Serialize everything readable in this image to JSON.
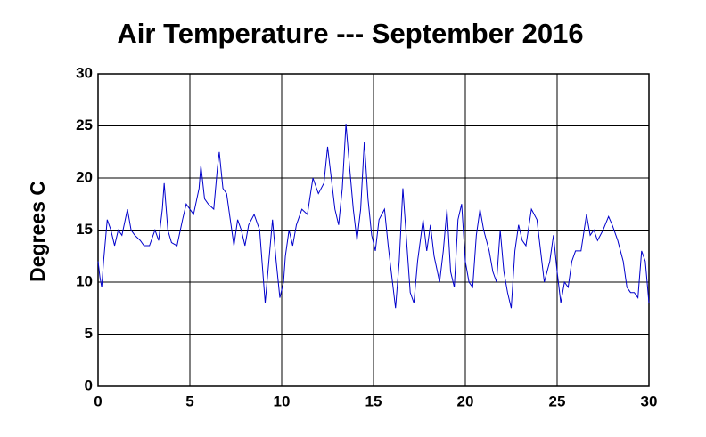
{
  "chart_data": {
    "type": "line",
    "title": "Air Temperature --- September 2016",
    "ylabel": "Degrees C",
    "xlim": [
      0,
      30
    ],
    "xticks": [
      0,
      5,
      10,
      15,
      20,
      25,
      30
    ],
    "ylim": [
      0,
      30
    ],
    "yticks": [
      0,
      5,
      10,
      15,
      20,
      25,
      30
    ],
    "grid": true,
    "x": [
      0,
      0.1,
      0.2,
      0.3,
      0.5,
      0.7,
      0.9,
      1.1,
      1.3,
      1.6,
      1.8,
      2.0,
      2.3,
      2.5,
      2.8,
      3.1,
      3.3,
      3.5,
      3.6,
      3.8,
      4.0,
      4.3,
      4.6,
      4.8,
      5.0,
      5.2,
      5.5,
      5.6,
      5.8,
      6.0,
      6.3,
      6.5,
      6.6,
      6.8,
      7.0,
      7.2,
      7.4,
      7.6,
      7.8,
      8.0,
      8.2,
      8.5,
      8.8,
      9.1,
      9.3,
      9.5,
      9.7,
      9.9,
      10.1,
      10.2,
      10.4,
      10.6,
      10.8,
      11.1,
      11.4,
      11.7,
      12.0,
      12.3,
      12.5,
      12.7,
      12.9,
      13.1,
      13.3,
      13.5,
      13.7,
      13.9,
      14.1,
      14.3,
      14.5,
      14.7,
      14.9,
      15.1,
      15.3,
      15.6,
      15.8,
      16.0,
      16.2,
      16.4,
      16.6,
      16.8,
      17.0,
      17.2,
      17.4,
      17.7,
      17.9,
      18.1,
      18.3,
      18.6,
      18.8,
      19.0,
      19.2,
      19.4,
      19.6,
      19.8,
      20.0,
      20.2,
      20.4,
      20.6,
      20.8,
      21.0,
      21.3,
      21.5,
      21.7,
      21.9,
      22.1,
      22.3,
      22.5,
      22.7,
      22.9,
      23.1,
      23.3,
      23.6,
      23.9,
      24.1,
      24.3,
      24.6,
      24.8,
      25.0,
      25.2,
      25.4,
      25.6,
      25.8,
      26.0,
      26.3,
      26.6,
      26.8,
      27.0,
      27.2,
      27.5,
      27.8,
      28.0,
      28.3,
      28.6,
      28.8,
      29.0,
      29.2,
      29.4,
      29.6,
      29.8,
      30.0
    ],
    "series": [
      {
        "name": "Air Temperature",
        "color": "#0000cc",
        "values": [
          12,
          10.5,
          9.5,
          12,
          16,
          15,
          13.5,
          15,
          14.5,
          17,
          15,
          14.5,
          14,
          13.5,
          13.5,
          15,
          14,
          17,
          19.5,
          15,
          13.8,
          13.5,
          16,
          17.5,
          17,
          16.5,
          19,
          21.2,
          18,
          17.5,
          17,
          21,
          22.5,
          19,
          18.5,
          16,
          13.5,
          16,
          15,
          13.5,
          15.5,
          16.5,
          15,
          8,
          12,
          16,
          12,
          8.5,
          10,
          12.5,
          15,
          13.5,
          15.5,
          17,
          16.5,
          20,
          18.5,
          19.5,
          23,
          20,
          17,
          15.5,
          19,
          25.2,
          21,
          17,
          14,
          17,
          23.5,
          18,
          14.5,
          13,
          16,
          17,
          13.5,
          10.5,
          7.5,
          12,
          19,
          14,
          9,
          8,
          12,
          16,
          13,
          15.5,
          12.5,
          10,
          13,
          17,
          11,
          9.5,
          16,
          17.5,
          12,
          10,
          9.5,
          14.5,
          17,
          15,
          13,
          11,
          10,
          15,
          11,
          9,
          7.5,
          13,
          15.5,
          14,
          13.5,
          17,
          16,
          13,
          10,
          12,
          14.5,
          11,
          8,
          10,
          9.5,
          12,
          13,
          13,
          16.5,
          14.5,
          15,
          14,
          15,
          16.3,
          15.5,
          14,
          12,
          9.5,
          9,
          9,
          8.5,
          13,
          12,
          8
        ]
      }
    ]
  }
}
